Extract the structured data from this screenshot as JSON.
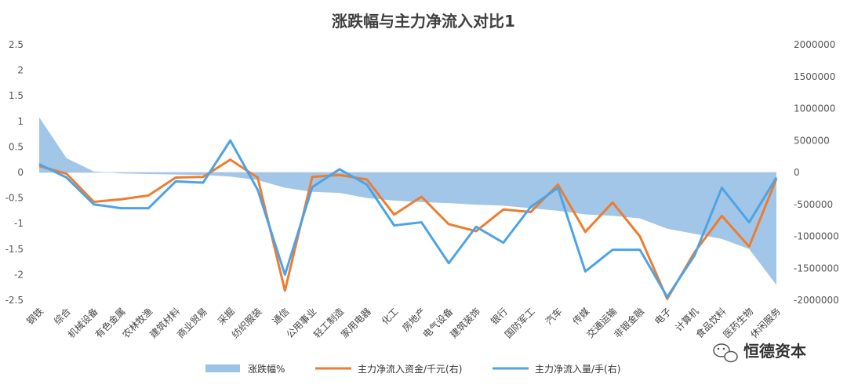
{
  "chart_data": {
    "type": "line",
    "title": "涨跌幅与主力净流入对比1",
    "categories": [
      "钢铁",
      "综合",
      "机械设备",
      "有色金属",
      "农林牧渔",
      "建筑材料",
      "商业贸易",
      "采掘",
      "纺织服装",
      "通信",
      "公用事业",
      "轻工制造",
      "家用电器",
      "化工",
      "房地产",
      "电气设备",
      "建筑装饰",
      "银行",
      "国防军工",
      "汽车",
      "传媒",
      "交通运输",
      "非银金融",
      "电子",
      "计算机",
      "食品饮料",
      "医药生物",
      "休闲服务"
    ],
    "y_left": {
      "range": [
        -2.5,
        2.5
      ],
      "ticks": [
        "2.5",
        "2",
        "1.5",
        "1",
        "0.5",
        "0",
        "-0.5",
        "-1",
        "-1.5",
        "-2",
        "-2.5"
      ]
    },
    "y_right": {
      "range": [
        -2000000,
        2000000
      ],
      "ticks": [
        "2000000",
        "1500000",
        "1000000",
        "500000",
        "0",
        "-500000",
        "-1000000",
        "-1500000",
        "-2000000"
      ]
    },
    "series": [
      {
        "name": "涨跌幅%",
        "type": "area",
        "axis": "left",
        "color": "#9dc3e6",
        "values": [
          1.08,
          0.28,
          0.02,
          -0.02,
          -0.03,
          -0.04,
          -0.05,
          -0.08,
          -0.15,
          -0.3,
          -0.38,
          -0.4,
          -0.5,
          -0.55,
          -0.58,
          -0.6,
          -0.63,
          -0.65,
          -0.7,
          -0.75,
          -0.82,
          -0.85,
          -0.9,
          -1.1,
          -1.2,
          -1.3,
          -1.5,
          -2.2
        ]
      },
      {
        "name": "主力净流入资金/千元(右)",
        "type": "line",
        "axis": "right",
        "color": "#ed7d31",
        "values": [
          100000,
          -20000,
          -460000,
          -420000,
          -360000,
          -80000,
          -70000,
          200000,
          -80000,
          -1850000,
          -70000,
          -40000,
          -110000,
          -660000,
          -380000,
          -810000,
          -920000,
          -580000,
          -620000,
          -190000,
          -930000,
          -470000,
          -1000000,
          -1980000,
          -1250000,
          -680000,
          -1160000,
          -100000
        ]
      },
      {
        "name": "主力净流入量/手(右)",
        "type": "line",
        "axis": "right",
        "color": "#4da3e6",
        "values": [
          130000,
          -80000,
          -500000,
          -560000,
          -560000,
          -140000,
          -160000,
          500000,
          -270000,
          -1600000,
          -230000,
          50000,
          -190000,
          -830000,
          -780000,
          -1420000,
          -850000,
          -1100000,
          -540000,
          -240000,
          -1550000,
          -1210000,
          -1210000,
          -1950000,
          -1300000,
          -240000,
          -780000,
          -80000
        ]
      }
    ],
    "legend": {
      "position": "bottom"
    }
  },
  "watermark": {
    "text": "恒德资本"
  },
  "colors": {
    "axis": "#d9d9d9",
    "tick_text": "#555555",
    "title": "#404040"
  }
}
